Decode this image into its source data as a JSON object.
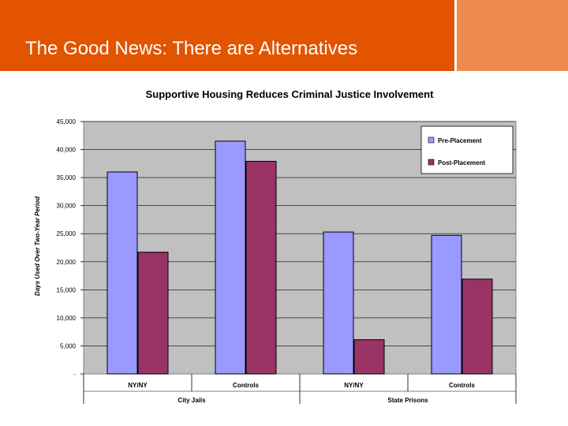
{
  "slide": {
    "title": "The Good News: There are Alternatives"
  },
  "colors": {
    "header": "#e25400",
    "header_side": "#ef8a4e",
    "plot_background": "#c0c0c0",
    "pre_placement": "#9999ff",
    "post_placement": "#993366"
  },
  "chart_data": {
    "type": "bar",
    "title": "Supportive Housing Reduces Criminal Justice Involvement",
    "ylabel": "Days Used Over Two-Year Period",
    "ylim": [
      0,
      45000
    ],
    "yticks": [
      0,
      5000,
      10000,
      15000,
      20000,
      25000,
      30000,
      35000,
      40000,
      45000
    ],
    "ytick_labels": [
      "-",
      "5,000",
      "10,000",
      "15,000",
      "20,000",
      "25,000",
      "30,000",
      "35,000",
      "40,000",
      "45,000"
    ],
    "categories": [
      "NY/NY",
      "Controls",
      "NY/NY",
      "Controls"
    ],
    "groups": [
      {
        "label": "City Jails",
        "span": [
          0,
          1
        ]
      },
      {
        "label": "State Prisons",
        "span": [
          2,
          3
        ]
      }
    ],
    "series": [
      {
        "name": "Pre-Placement",
        "color": "#9999ff",
        "values": [
          36000,
          41500,
          25300,
          24700
        ]
      },
      {
        "name": "Post-Placement",
        "color": "#993366",
        "values": [
          21700,
          37900,
          6100,
          16900
        ]
      }
    ],
    "legend": "top-right",
    "grid": true
  }
}
